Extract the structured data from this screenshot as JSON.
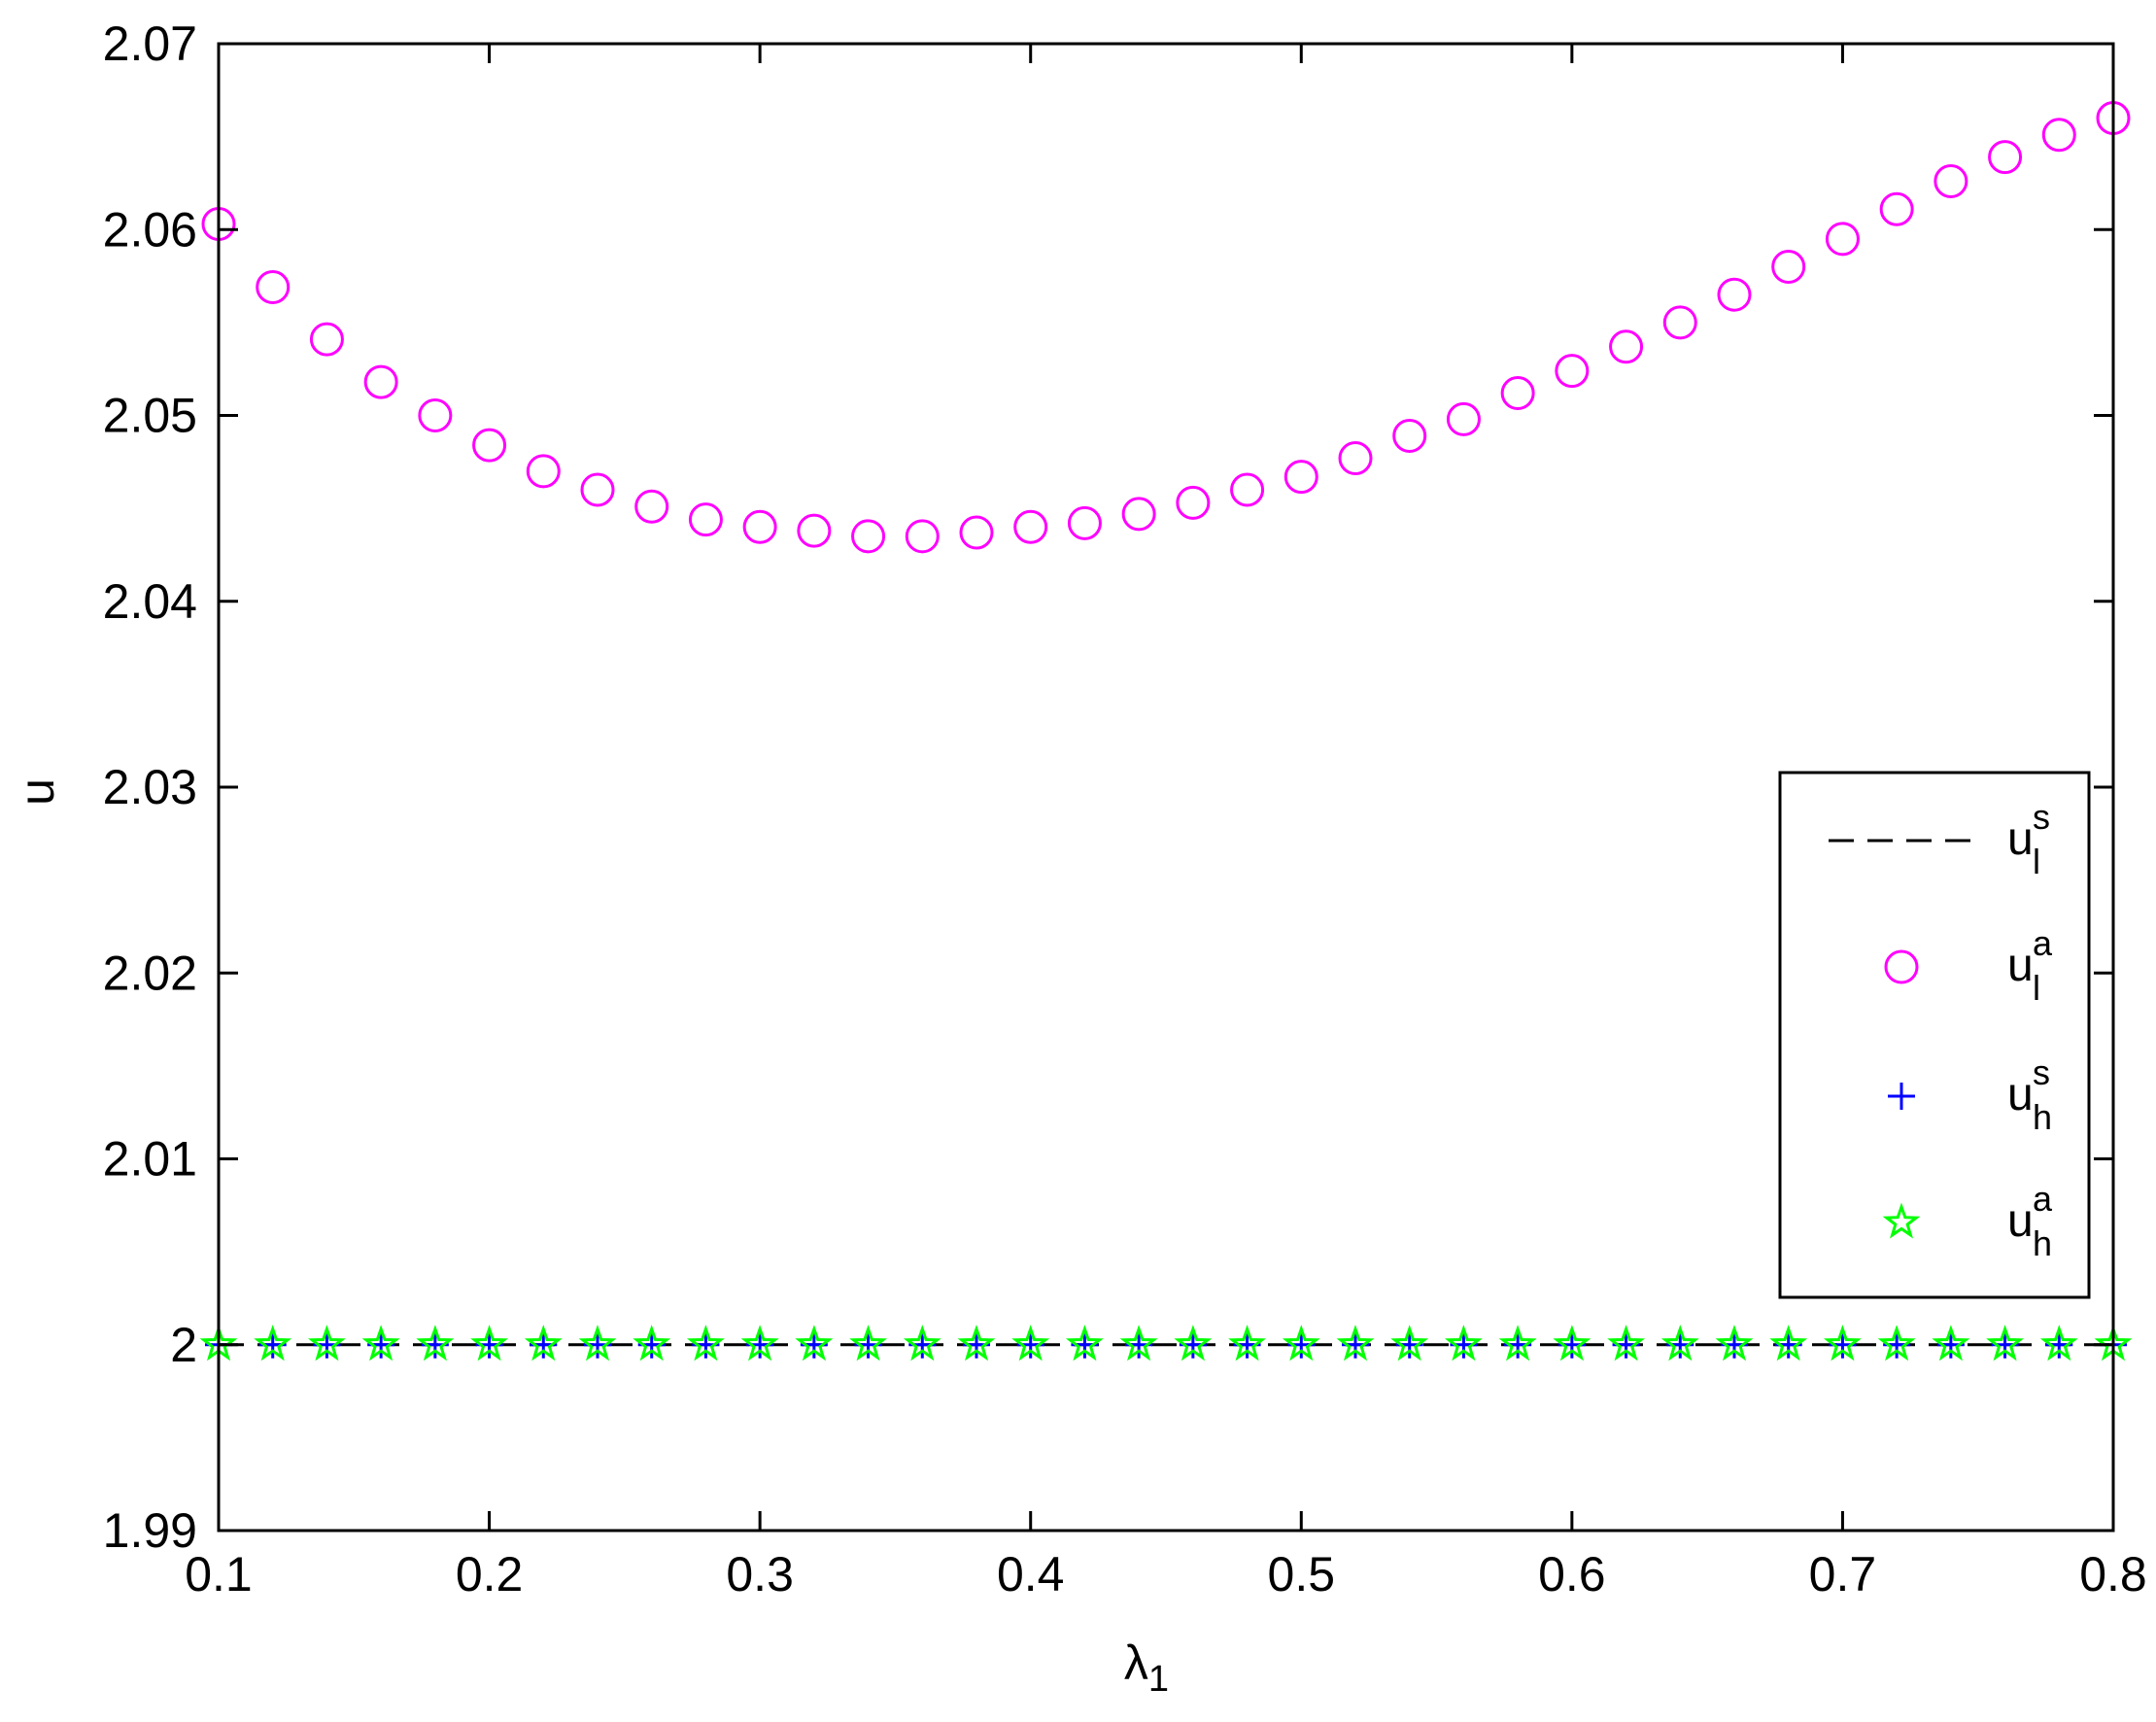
{
  "chart_data": {
    "type": "scatter",
    "title": "",
    "xlabel": "λ",
    "xlabel_sub": "1",
    "ylabel": "u",
    "xlim": [
      0.1,
      0.8
    ],
    "ylim": [
      1.99,
      2.07
    ],
    "xticks": [
      0.1,
      0.2,
      0.3,
      0.4,
      0.5,
      0.6,
      0.7,
      0.8
    ],
    "xtick_labels": [
      "0.1",
      "0.2",
      "0.3",
      "0.4",
      "0.5",
      "0.6",
      "0.7",
      "0.8"
    ],
    "yticks": [
      1.99,
      2.0,
      2.01,
      2.02,
      2.03,
      2.04,
      2.05,
      2.06,
      2.07
    ],
    "ytick_labels": [
      "1.99",
      "2",
      "2.01",
      "2.02",
      "2.03",
      "2.04",
      "2.05",
      "2.06",
      "2.07"
    ],
    "grid": false,
    "legend_position": "right",
    "x": [
      0.1,
      0.12,
      0.14,
      0.16,
      0.18,
      0.2,
      0.22,
      0.24,
      0.26,
      0.28,
      0.3,
      0.32,
      0.34,
      0.36,
      0.38,
      0.4,
      0.42,
      0.44,
      0.46,
      0.48,
      0.5,
      0.52,
      0.54,
      0.56,
      0.58,
      0.6,
      0.62,
      0.64,
      0.66,
      0.68,
      0.7,
      0.72,
      0.74,
      0.76,
      0.78,
      0.8
    ],
    "series": [
      {
        "name": "u",
        "sub": "l",
        "sup": "s",
        "style": "dashed-line",
        "color": "#000000",
        "values": [
          2.0,
          2.0,
          2.0,
          2.0,
          2.0,
          2.0,
          2.0,
          2.0,
          2.0,
          2.0,
          2.0,
          2.0,
          2.0,
          2.0,
          2.0,
          2.0,
          2.0,
          2.0,
          2.0,
          2.0,
          2.0,
          2.0,
          2.0,
          2.0,
          2.0,
          2.0,
          2.0,
          2.0,
          2.0,
          2.0,
          2.0,
          2.0,
          2.0,
          2.0,
          2.0,
          2.0
        ]
      },
      {
        "name": "u",
        "sub": "l",
        "sup": "a",
        "style": "circle",
        "color": "#ff00ff",
        "values": [
          2.0603,
          2.0569,
          2.0541,
          2.0518,
          2.05,
          2.0484,
          2.047,
          2.046,
          2.0451,
          2.0444,
          2.044,
          2.0438,
          2.0435,
          2.0435,
          2.0437,
          2.044,
          2.0442,
          2.0447,
          2.0453,
          2.046,
          2.0467,
          2.0477,
          2.0489,
          2.0498,
          2.0512,
          2.0524,
          2.0537,
          2.055,
          2.0565,
          2.058,
          2.0595,
          2.0611,
          2.0626,
          2.0639,
          2.0651,
          2.066
        ]
      },
      {
        "name": "u",
        "sub": "h",
        "sup": "s",
        "style": "plus",
        "color": "#0000ff",
        "values": [
          2.0,
          2.0,
          2.0,
          2.0,
          2.0,
          2.0,
          2.0,
          2.0,
          2.0,
          2.0,
          2.0,
          2.0,
          2.0,
          2.0,
          2.0,
          2.0,
          2.0,
          2.0,
          2.0,
          2.0,
          2.0,
          2.0,
          2.0,
          2.0,
          2.0,
          2.0,
          2.0,
          2.0,
          2.0,
          2.0,
          2.0,
          2.0,
          2.0,
          2.0,
          2.0,
          2.0
        ]
      },
      {
        "name": "u",
        "sub": "h",
        "sup": "a",
        "style": "star",
        "color": "#00ff00",
        "values": [
          2.0,
          2.0,
          2.0,
          2.0,
          2.0,
          2.0,
          2.0,
          2.0,
          2.0,
          2.0,
          2.0,
          2.0,
          2.0,
          2.0,
          2.0,
          2.0,
          2.0,
          2.0,
          2.0,
          2.0,
          2.0,
          2.0,
          2.0,
          2.0,
          2.0,
          2.0,
          2.0,
          2.0,
          2.0,
          2.0,
          2.0,
          2.0,
          2.0,
          2.0,
          2.0,
          2.0
        ]
      }
    ]
  }
}
